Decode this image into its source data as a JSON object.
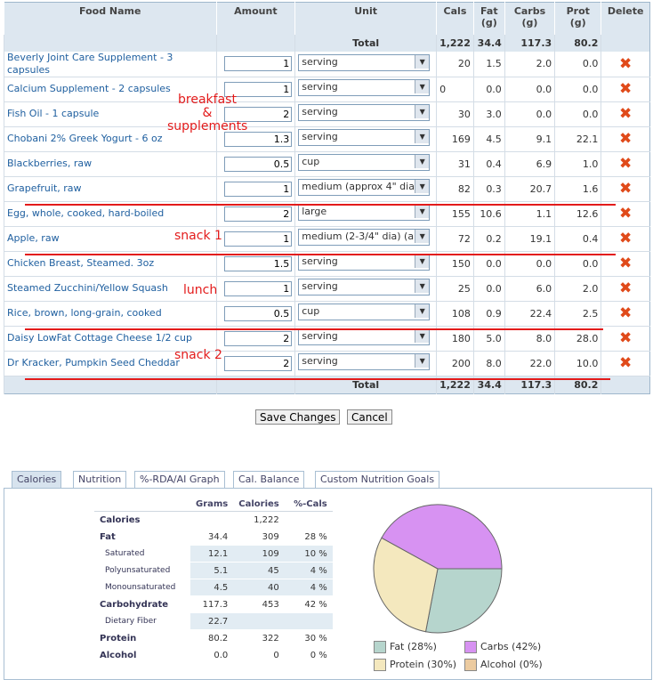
{
  "headers": {
    "food": "Food Name",
    "amount": "Amount",
    "unit": "Unit",
    "cals": "Cals",
    "fat": "Fat (g)",
    "carbs": "Carbs (g)",
    "prot": "Prot (g)",
    "delete": "Delete"
  },
  "total": {
    "label": "Total",
    "cals": "1,222",
    "fat": "34.4",
    "carbs": "117.3",
    "prot": "80.2"
  },
  "rows": [
    {
      "name": "Beverly Joint Care Supplement - 3 capsules",
      "amount": "1",
      "unit": "serving",
      "cals": "20",
      "fat": "1.5",
      "carbs": "2.0",
      "prot": "0.0"
    },
    {
      "name": "Calcium Supplement - 2 capsules",
      "amount": "1",
      "unit": "serving",
      "cals": "0",
      "fat": "0.0",
      "carbs": "0.0",
      "prot": "0.0"
    },
    {
      "name": "Fish Oil - 1 capsule",
      "amount": "2",
      "unit": "serving",
      "cals": "30",
      "fat": "3.0",
      "carbs": "0.0",
      "prot": "0.0"
    },
    {
      "name": "Chobani 2% Greek Yogurt - 6 oz",
      "amount": "1.3",
      "unit": "serving",
      "cals": "169",
      "fat": "4.5",
      "carbs": "9.1",
      "prot": "22.1"
    },
    {
      "name": "Blackberries, raw",
      "amount": "0.5",
      "unit": "cup",
      "cals": "31",
      "fat": "0.4",
      "carbs": "6.9",
      "prot": "1.0"
    },
    {
      "name": "Grapefruit, raw",
      "amount": "1",
      "unit": "medium (approx 4\" dia",
      "cals": "82",
      "fat": "0.3",
      "carbs": "20.7",
      "prot": "1.6"
    },
    {
      "name": "Egg, whole, cooked, hard-boiled",
      "amount": "2",
      "unit": "large",
      "cals": "155",
      "fat": "10.6",
      "carbs": "1.1",
      "prot": "12.6"
    },
    {
      "name": "Apple, raw",
      "amount": "1",
      "unit": "medium (2-3/4\" dia) (a",
      "cals": "72",
      "fat": "0.2",
      "carbs": "19.1",
      "prot": "0.4"
    },
    {
      "name": "Chicken Breast, Steamed. 3oz",
      "amount": "1.5",
      "unit": "serving",
      "cals": "150",
      "fat": "0.0",
      "carbs": "0.0",
      "prot": "0.0"
    },
    {
      "name": "Steamed Zucchini/Yellow Squash",
      "amount": "1",
      "unit": "serving",
      "cals": "25",
      "fat": "0.0",
      "carbs": "6.0",
      "prot": "2.0"
    },
    {
      "name": "Rice, brown, long-grain, cooked",
      "amount": "0.5",
      "unit": "cup",
      "cals": "108",
      "fat": "0.9",
      "carbs": "22.4",
      "prot": "2.5"
    },
    {
      "name": "Daisy LowFat Cottage Cheese 1/2 cup",
      "amount": "2",
      "unit": "serving",
      "cals": "180",
      "fat": "5.0",
      "carbs": "8.0",
      "prot": "28.0"
    },
    {
      "name": "Dr Kracker, Pumpkin Seed Cheddar",
      "amount": "2",
      "unit": "serving",
      "cals": "200",
      "fat": "8.0",
      "carbs": "22.0",
      "prot": "10.0"
    }
  ],
  "annotations": {
    "breakfast_1": "breakfast",
    "breakfast_2": "&",
    "breakfast_3": "supplements",
    "snack1": "snack 1",
    "lunch": "lunch",
    "snack2": "snack 2"
  },
  "buttons": {
    "save": "Save Changes",
    "cancel": "Cancel"
  },
  "tabs": [
    "Calories",
    "Nutrition",
    "%-RDA/AI Graph",
    "Cal. Balance",
    "Custom Nutrition Goals"
  ],
  "nutrition": {
    "headers": [
      "Grams",
      "Calories",
      "%-Cals"
    ],
    "rows": [
      {
        "label": "Calories",
        "grams": "",
        "cals": "1,222",
        "pct": ""
      },
      {
        "label": "Fat",
        "grams": "34.4",
        "cals": "309",
        "pct": "28 %"
      },
      {
        "label": "Saturated",
        "grams": "12.1",
        "cals": "109",
        "pct": "10 %"
      },
      {
        "label": "Polyunsaturated",
        "grams": "5.1",
        "cals": "45",
        "pct": "4 %"
      },
      {
        "label": "Monounsaturated",
        "grams": "4.5",
        "cals": "40",
        "pct": "4 %"
      },
      {
        "label": "Carbohydrate",
        "grams": "117.3",
        "cals": "453",
        "pct": "42 %"
      },
      {
        "label": "Dietary Fiber",
        "grams": "22.7",
        "cals": "",
        "pct": ""
      },
      {
        "label": "Protein",
        "grams": "80.2",
        "cals": "322",
        "pct": "30 %"
      },
      {
        "label": "Alcohol",
        "grams": "0.0",
        "cals": "0",
        "pct": "0 %"
      }
    ]
  },
  "chart_data": {
    "type": "pie",
    "categories": [
      "Fat",
      "Carbs",
      "Protein",
      "Alcohol"
    ],
    "values": [
      28,
      42,
      30,
      0
    ],
    "legend_labels": [
      "Fat  (28%)",
      "Carbs  (42%)",
      "Protein  (30%)",
      "Alcohol  (0%)"
    ],
    "colors": [
      "#b6d5cd",
      "#d792f2",
      "#f4e8be",
      "#eccba0"
    ]
  }
}
